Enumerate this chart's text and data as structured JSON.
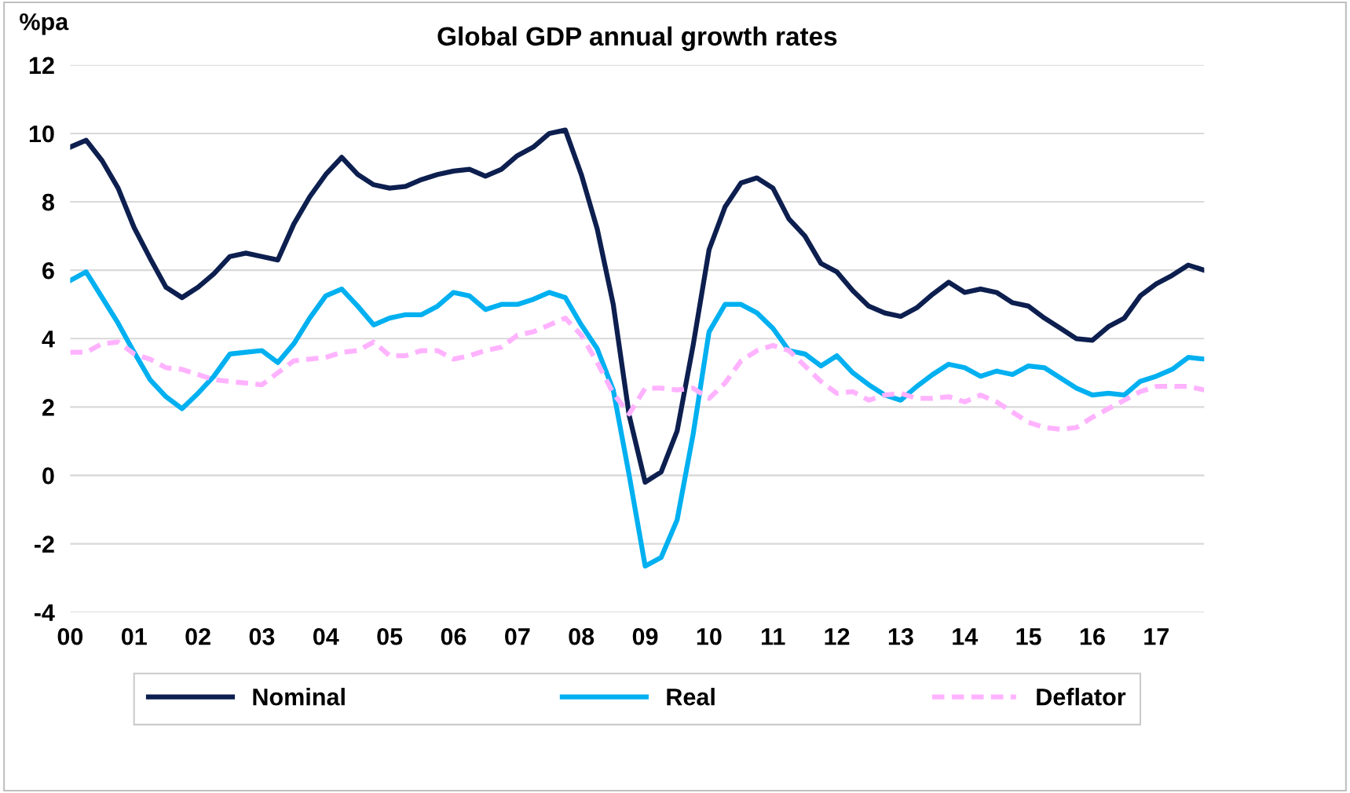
{
  "chart_data": {
    "type": "line",
    "title": "Global GDP annual growth rates",
    "ylabel": "%pa",
    "categories": [
      "00",
      null,
      null,
      null,
      "01",
      null,
      null,
      null,
      "02",
      null,
      null,
      null,
      "03",
      null,
      null,
      null,
      "04",
      null,
      null,
      null,
      "05",
      null,
      null,
      null,
      "06",
      null,
      null,
      null,
      "07",
      null,
      null,
      null,
      "08",
      null,
      null,
      null,
      "09",
      null,
      null,
      null,
      "10",
      null,
      null,
      null,
      "11",
      null,
      null,
      null,
      "12",
      null,
      null,
      null,
      "13",
      null,
      null,
      null,
      "14",
      null,
      null,
      null,
      "15",
      null,
      null,
      null,
      "16",
      null,
      null,
      null,
      "17",
      null,
      null,
      null
    ],
    "series": [
      {
        "name": "Nominal",
        "color": "#0d1f4f",
        "line_style": "solid",
        "values": [
          9.6,
          9.8,
          9.2,
          8.4,
          7.25,
          6.35,
          5.5,
          5.2,
          5.5,
          5.9,
          6.4,
          6.5,
          6.4,
          6.3,
          7.35,
          8.15,
          8.8,
          9.3,
          8.8,
          8.5,
          8.4,
          8.45,
          8.65,
          8.8,
          8.9,
          8.95,
          8.75,
          8.95,
          9.35,
          9.6,
          10.0,
          10.1,
          8.8,
          7.2,
          5.0,
          1.75,
          -0.2,
          0.1,
          1.3,
          3.8,
          6.6,
          7.85,
          8.55,
          8.7,
          8.4,
          7.5,
          7.0,
          6.2,
          5.95,
          5.4,
          4.95,
          4.75,
          4.65,
          4.9,
          5.3,
          5.65,
          5.35,
          5.45,
          5.35,
          5.05,
          4.95,
          4.6,
          4.3,
          4.0,
          3.95,
          4.35,
          4.6,
          5.25,
          5.6,
          5.85,
          6.15,
          6.0
        ]
      },
      {
        "name": "Real",
        "color": "#00b0f0",
        "line_style": "solid",
        "values": [
          5.7,
          5.95,
          5.2,
          4.45,
          3.6,
          2.8,
          2.3,
          1.95,
          2.4,
          2.9,
          3.55,
          3.6,
          3.65,
          3.3,
          3.85,
          4.6,
          5.25,
          5.45,
          4.95,
          4.4,
          4.6,
          4.7,
          4.7,
          4.95,
          5.35,
          5.25,
          4.85,
          5.0,
          5.0,
          5.15,
          5.35,
          5.2,
          4.4,
          3.7,
          2.5,
          0.0,
          -2.65,
          -2.4,
          -1.3,
          1.2,
          4.2,
          5.0,
          5.0,
          4.75,
          4.3,
          3.65,
          3.55,
          3.2,
          3.5,
          3.0,
          2.65,
          2.35,
          2.2,
          2.6,
          2.95,
          3.25,
          3.15,
          2.9,
          3.05,
          2.95,
          3.2,
          3.15,
          2.85,
          2.55,
          2.35,
          2.4,
          2.35,
          2.75,
          2.9,
          3.1,
          3.45,
          3.4
        ]
      },
      {
        "name": "Deflator",
        "color": "#ffb3ff",
        "line_style": "dashed",
        "values": [
          3.6,
          3.6,
          3.85,
          3.9,
          3.55,
          3.4,
          3.15,
          3.1,
          2.95,
          2.8,
          2.75,
          2.7,
          2.65,
          3.0,
          3.35,
          3.4,
          3.45,
          3.6,
          3.65,
          3.9,
          3.5,
          3.5,
          3.65,
          3.65,
          3.4,
          3.5,
          3.65,
          3.75,
          4.1,
          4.2,
          4.4,
          4.6,
          4.1,
          3.3,
          2.4,
          1.8,
          2.55,
          2.55,
          2.5,
          2.55,
          2.25,
          2.7,
          3.35,
          3.65,
          3.8,
          3.65,
          3.2,
          2.75,
          2.4,
          2.45,
          2.2,
          2.35,
          2.4,
          2.25,
          2.25,
          2.3,
          2.15,
          2.35,
          2.15,
          1.85,
          1.55,
          1.4,
          1.35,
          1.4,
          1.7,
          1.95,
          2.2,
          2.45,
          2.6,
          2.6,
          2.6,
          2.5
        ]
      }
    ],
    "ylim": [
      -4,
      12
    ],
    "yticks": [
      -4,
      -2,
      0,
      2,
      4,
      6,
      8,
      10,
      12
    ],
    "grid": "y",
    "legend": "bottom"
  }
}
